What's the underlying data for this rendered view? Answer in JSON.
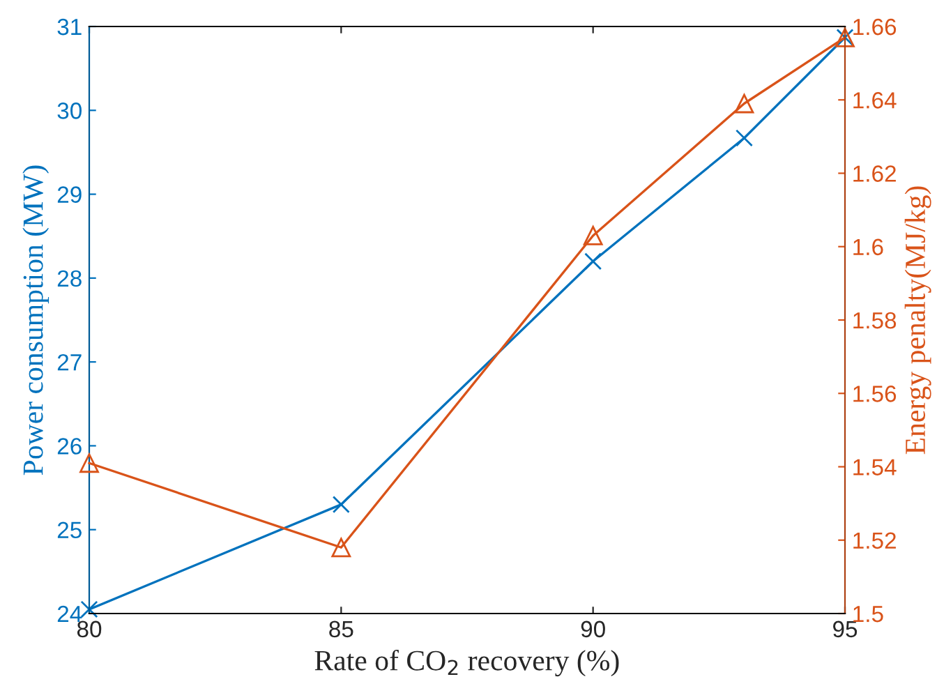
{
  "chart_data": {
    "type": "line",
    "xlabel": "Rate of CO$_{2}$ recovery (%)",
    "ylabel": "Power consumption (MW)",
    "y2label": "Energy penalty(MJ/kg)",
    "x": [
      80,
      85,
      90,
      93,
      95
    ],
    "series": [
      {
        "color": "#0072bd",
        "marker": "cross",
        "values": [
          24.05,
          25.3,
          28.2,
          29.67,
          30.87
        ]
      },
      {
        "color": "#d95319",
        "marker": "triangle",
        "axis": "y2",
        "values": [
          1.541,
          1.518,
          1.603,
          1.639,
          1.657
        ]
      }
    ],
    "xlim": [
      80,
      95
    ],
    "xticks": [
      80,
      85,
      90,
      95
    ],
    "ylim": [
      24,
      31
    ],
    "yticks": [
      24,
      25,
      26,
      27,
      28,
      29,
      30,
      31
    ],
    "y2lim": [
      1.5,
      1.66
    ],
    "y2ticks": [
      1.5,
      1.52,
      1.54,
      1.56,
      1.58,
      1.6,
      1.62,
      1.64,
      1.66
    ],
    "grid": false,
    "legend": false
  }
}
